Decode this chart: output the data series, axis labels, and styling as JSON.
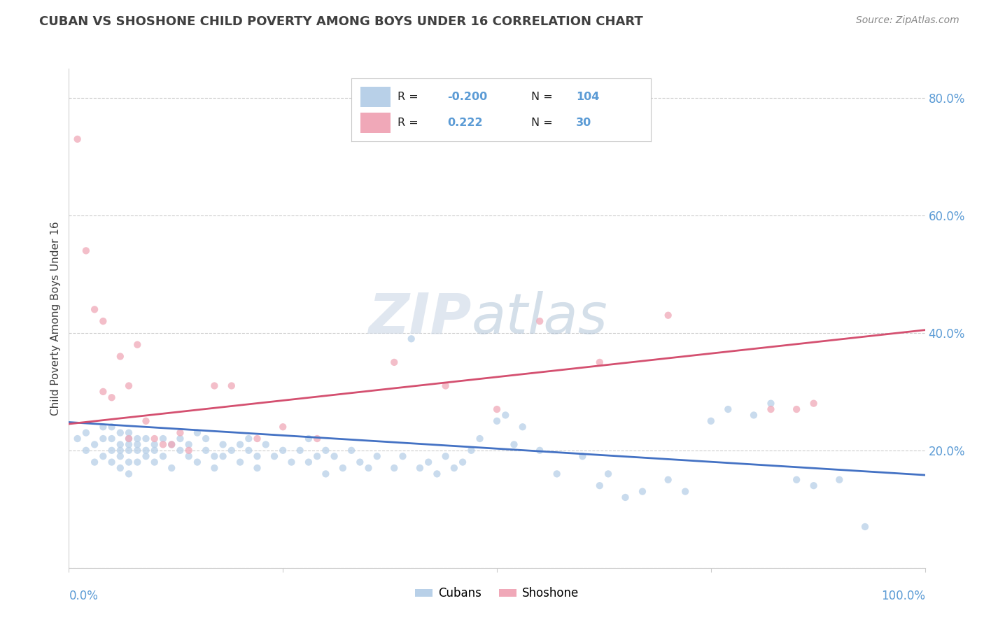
{
  "title": "CUBAN VS SHOSHONE CHILD POVERTY AMONG BOYS UNDER 16 CORRELATION CHART",
  "source": "Source: ZipAtlas.com",
  "ylabel": "Child Poverty Among Boys Under 16",
  "watermark_zip": "ZIP",
  "watermark_atlas": "atlas",
  "xlim": [
    0.0,
    1.0
  ],
  "ylim": [
    0.0,
    0.85
  ],
  "legend_r_blue": "-0.200",
  "legend_n_blue": "104",
  "legend_r_pink": "0.222",
  "legend_n_pink": "30",
  "legend_label_blue": "Cubans",
  "legend_label_pink": "Shoshone",
  "blue_scatter_color": "#b8d0e8",
  "pink_scatter_color": "#f0a8b8",
  "line_blue_color": "#4472c4",
  "line_pink_color": "#d45070",
  "title_color": "#404040",
  "axis_tick_color": "#5b9bd5",
  "ylabel_color": "#404040",
  "source_color": "#888888",
  "dot_size": 55,
  "dot_alpha": 0.75,
  "blue_trend_x0": 0.0,
  "blue_trend_x1": 1.0,
  "blue_trend_y0": 0.248,
  "blue_trend_y1": 0.158,
  "pink_trend_x0": 0.0,
  "pink_trend_x1": 1.0,
  "pink_trend_y0": 0.245,
  "pink_trend_y1": 0.405,
  "blue_x": [
    0.01,
    0.02,
    0.02,
    0.03,
    0.03,
    0.04,
    0.04,
    0.04,
    0.05,
    0.05,
    0.05,
    0.05,
    0.06,
    0.06,
    0.06,
    0.06,
    0.06,
    0.07,
    0.07,
    0.07,
    0.07,
    0.07,
    0.07,
    0.08,
    0.08,
    0.08,
    0.08,
    0.09,
    0.09,
    0.09,
    0.1,
    0.1,
    0.1,
    0.11,
    0.11,
    0.12,
    0.12,
    0.13,
    0.13,
    0.14,
    0.14,
    0.15,
    0.15,
    0.16,
    0.16,
    0.17,
    0.17,
    0.18,
    0.18,
    0.19,
    0.2,
    0.2,
    0.21,
    0.21,
    0.22,
    0.22,
    0.23,
    0.24,
    0.25,
    0.26,
    0.27,
    0.28,
    0.28,
    0.29,
    0.3,
    0.3,
    0.31,
    0.32,
    0.33,
    0.34,
    0.35,
    0.36,
    0.38,
    0.39,
    0.4,
    0.41,
    0.42,
    0.43,
    0.44,
    0.45,
    0.46,
    0.47,
    0.48,
    0.5,
    0.51,
    0.52,
    0.53,
    0.55,
    0.57,
    0.6,
    0.62,
    0.63,
    0.65,
    0.67,
    0.7,
    0.72,
    0.75,
    0.77,
    0.8,
    0.82,
    0.85,
    0.87,
    0.9,
    0.93
  ],
  "blue_y": [
    0.22,
    0.2,
    0.23,
    0.21,
    0.18,
    0.22,
    0.19,
    0.24,
    0.2,
    0.18,
    0.22,
    0.24,
    0.21,
    0.19,
    0.23,
    0.17,
    0.2,
    0.22,
    0.2,
    0.18,
    0.21,
    0.23,
    0.16,
    0.2,
    0.22,
    0.18,
    0.21,
    0.19,
    0.22,
    0.2,
    0.21,
    0.18,
    0.2,
    0.22,
    0.19,
    0.21,
    0.17,
    0.2,
    0.22,
    0.19,
    0.21,
    0.23,
    0.18,
    0.2,
    0.22,
    0.19,
    0.17,
    0.21,
    0.19,
    0.2,
    0.21,
    0.18,
    0.2,
    0.22,
    0.19,
    0.17,
    0.21,
    0.19,
    0.2,
    0.18,
    0.2,
    0.22,
    0.18,
    0.19,
    0.16,
    0.2,
    0.19,
    0.17,
    0.2,
    0.18,
    0.17,
    0.19,
    0.17,
    0.19,
    0.39,
    0.17,
    0.18,
    0.16,
    0.19,
    0.17,
    0.18,
    0.2,
    0.22,
    0.25,
    0.26,
    0.21,
    0.24,
    0.2,
    0.16,
    0.19,
    0.14,
    0.16,
    0.12,
    0.13,
    0.15,
    0.13,
    0.25,
    0.27,
    0.26,
    0.28,
    0.15,
    0.14,
    0.15,
    0.07
  ],
  "pink_x": [
    0.01,
    0.02,
    0.03,
    0.04,
    0.04,
    0.05,
    0.06,
    0.07,
    0.07,
    0.08,
    0.09,
    0.1,
    0.11,
    0.12,
    0.13,
    0.14,
    0.17,
    0.19,
    0.22,
    0.25,
    0.29,
    0.38,
    0.44,
    0.5,
    0.55,
    0.62,
    0.7,
    0.82,
    0.85,
    0.87
  ],
  "pink_y": [
    0.73,
    0.54,
    0.44,
    0.42,
    0.3,
    0.29,
    0.36,
    0.31,
    0.22,
    0.38,
    0.25,
    0.22,
    0.21,
    0.21,
    0.23,
    0.2,
    0.31,
    0.31,
    0.22,
    0.24,
    0.22,
    0.35,
    0.31,
    0.27,
    0.42,
    0.35,
    0.43,
    0.27,
    0.27,
    0.28
  ],
  "background_color": "#ffffff",
  "grid_color": "#cccccc",
  "spine_color": "#cccccc"
}
